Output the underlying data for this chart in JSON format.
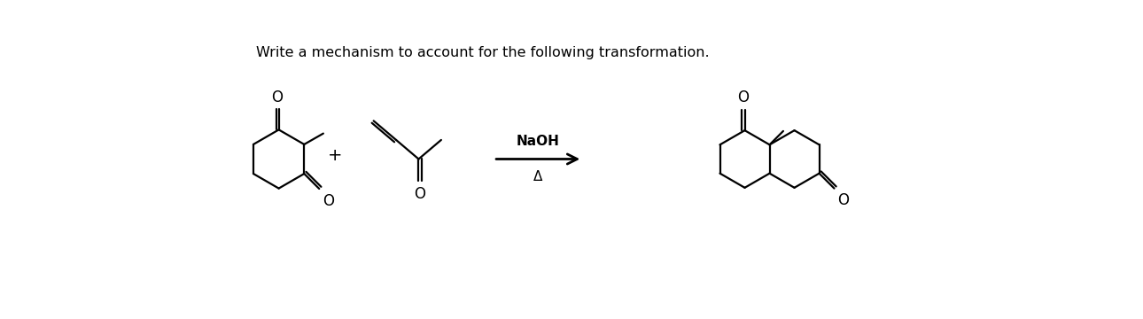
{
  "title": "Write a mechanism to account for the following transformation.",
  "background_color": "#ffffff",
  "arrow_label_top": "NaOH",
  "arrow_label_bottom": "Δ",
  "fig_width": 12.9,
  "fig_height": 3.6
}
